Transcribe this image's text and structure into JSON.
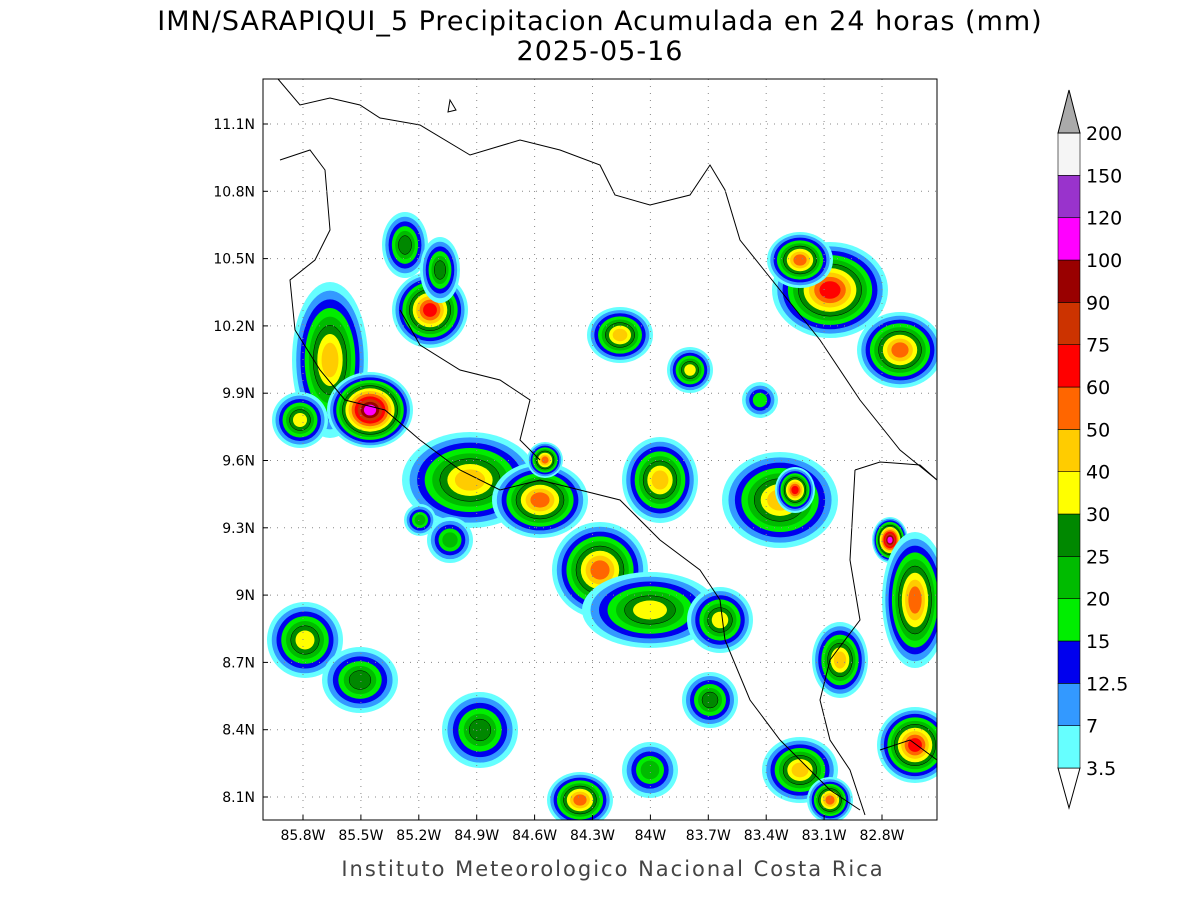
{
  "title": "IMN/SARAPIQUI_5 Precipitacion Acumulada en 24 horas (mm)",
  "date": "2025-05-16",
  "lat_labels": [
    "11.1N",
    "10.8N",
    "10.5N",
    "10.2N",
    "9.9N",
    "9.6N",
    "9.3N",
    "9N",
    "8.7N",
    "8.4N",
    "8.1N"
  ],
  "lon_labels": [
    "85.8W",
    "85.5W",
    "85.2W",
    "84.9W",
    "84.6W",
    "84.3W",
    "84W",
    "83.7W",
    "83.4W",
    "83.1W",
    "82.8W"
  ],
  "legend": {
    "levels": [
      "3.5",
      "7",
      "12.5",
      "15",
      "20",
      "25",
      "30",
      "40",
      "50",
      "60",
      "75",
      "90",
      "100",
      "120",
      "150",
      "200"
    ],
    "colors": [
      "#66ffff",
      "#3399ff",
      "#0000ee",
      "#00ee00",
      "#00bb00",
      "#008800",
      "#ffff00",
      "#ffcc00",
      "#ff6600",
      "#ff0000",
      "#cc3300",
      "#990000",
      "#ff00ff",
      "#9933cc",
      "#f5f5f5"
    ]
  },
  "credit": "Instituto Meteorologico Nacional Costa Rica"
}
